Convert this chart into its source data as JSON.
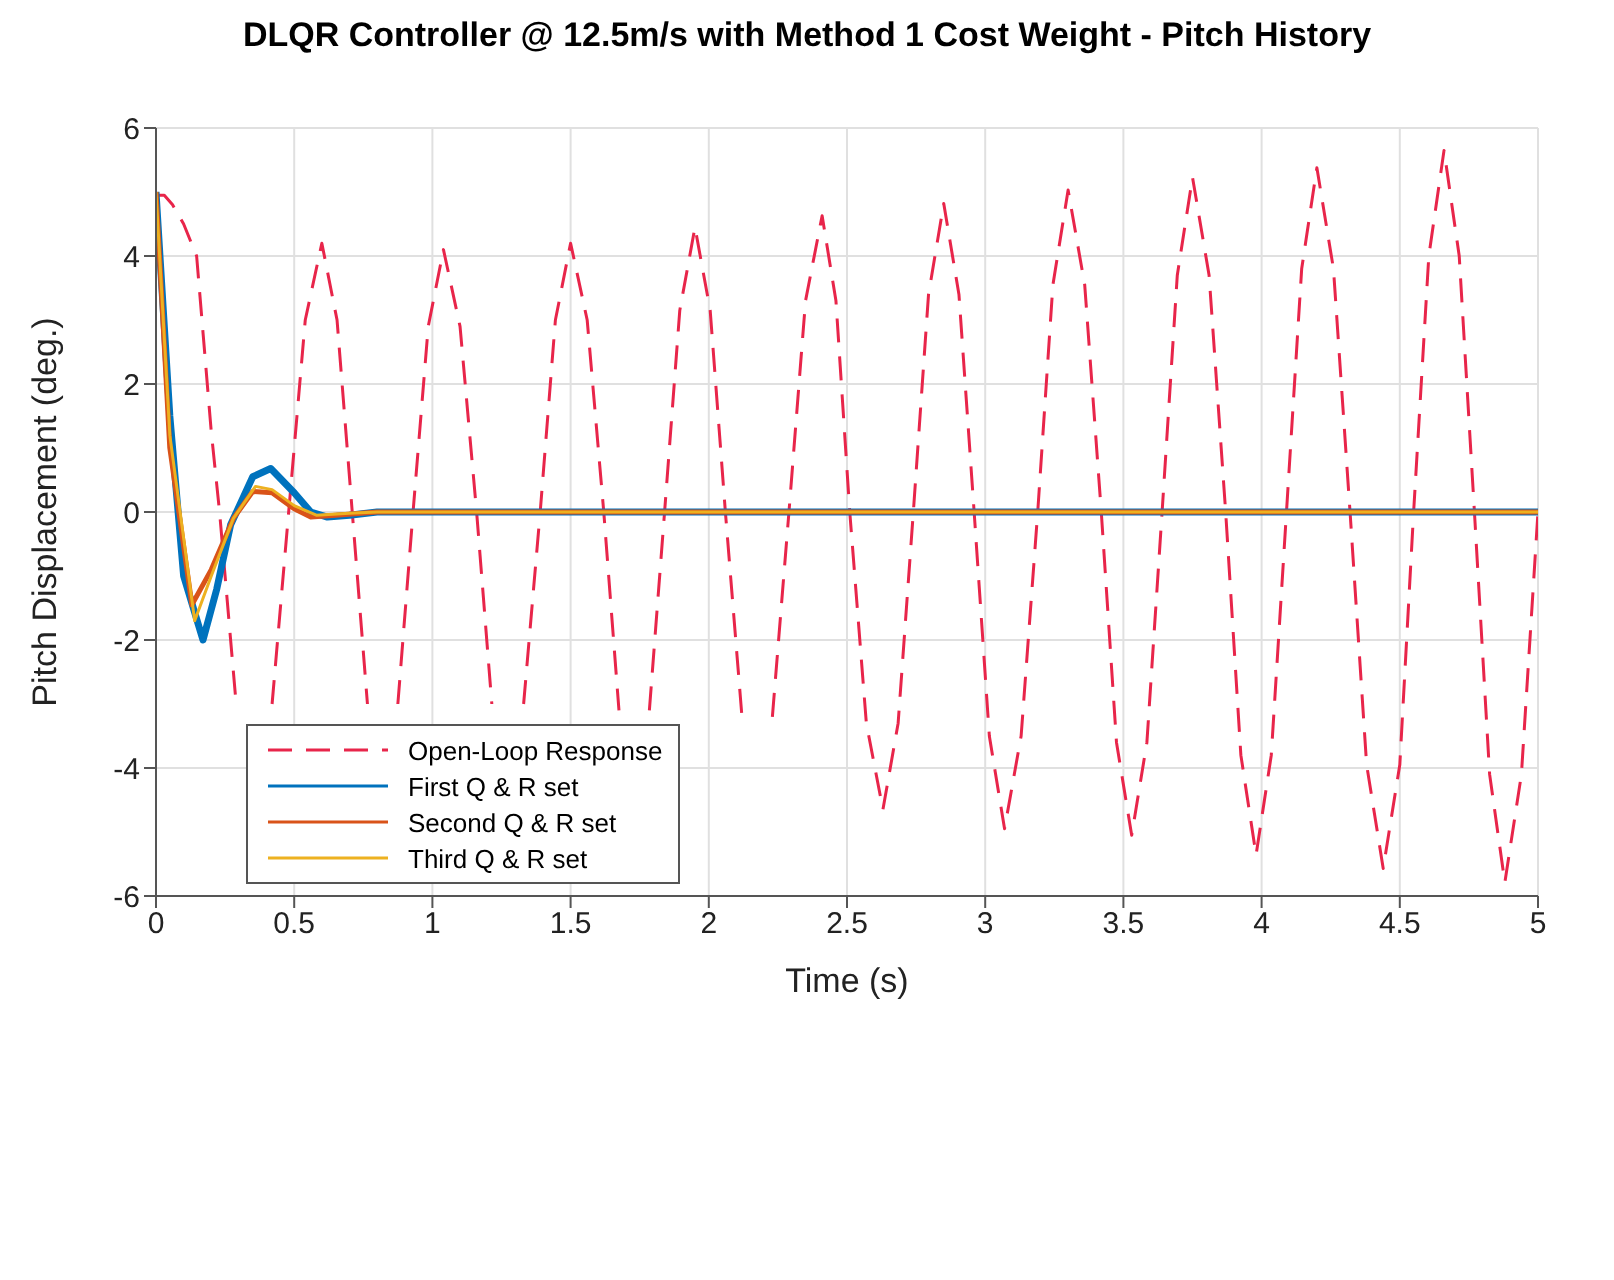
{
  "chart_data": {
    "type": "line",
    "title": "DLQR Controller @ 12.5m/s with Method 1 Cost Weight - Pitch History",
    "xlabel": "Time (s)",
    "ylabel": "Pitch Displacement (deg.)",
    "xlim": [
      0,
      5
    ],
    "xticks": [
      0,
      0.5,
      1,
      1.5,
      2,
      2.5,
      3,
      3.5,
      4,
      4.5,
      5
    ],
    "ylim": [
      -6,
      6
    ],
    "yticks": [
      -6,
      -4,
      -2,
      0,
      2,
      4,
      6
    ],
    "grid": true,
    "legend": "bottom left",
    "marker": "none",
    "series": [
      {
        "name": "Open-Loop Response",
        "color": "#e8254a",
        "line_style": "dashed",
        "x": [
          0,
          0.03,
          0.06,
          0.1,
          0.147,
          0.2,
          0.23,
          0.29,
          0.355,
          0.42,
          0.48,
          0.54,
          0.6,
          0.655,
          0.71,
          0.765,
          0.82,
          0.875,
          0.93,
          0.985,
          1.04,
          1.1,
          1.16,
          1.215,
          1.27,
          1.33,
          1.39,
          1.445,
          1.5,
          1.56,
          1.62,
          1.675,
          1.73,
          1.785,
          1.84,
          1.895,
          1.95,
          2.005,
          2.06,
          2.12,
          2.175,
          2.23,
          2.29,
          2.35,
          2.41,
          2.46,
          2.51,
          2.57,
          2.63,
          2.685,
          2.74,
          2.795,
          2.85,
          2.905,
          2.96,
          3.015,
          3.07,
          3.13,
          3.19,
          3.245,
          3.3,
          3.36,
          3.42,
          3.475,
          3.53,
          3.585,
          3.64,
          3.695,
          3.75,
          3.81,
          3.87,
          3.925,
          3.98,
          4.035,
          4.09,
          4.145,
          4.2,
          4.26,
          4.32,
          4.38,
          4.44,
          4.5,
          4.55,
          4.605,
          4.66,
          4.715,
          4.77,
          4.825,
          4.88,
          4.94,
          5
        ],
        "values": [
          4.95,
          4.95,
          4.8,
          4.5,
          4.0,
          1.25,
          0,
          -3.0,
          null,
          -3.0,
          0,
          3.0,
          4.2,
          3.0,
          0,
          -3.0,
          null,
          -3.0,
          0,
          2.9,
          4.1,
          2.9,
          0,
          -3.0,
          null,
          -3.0,
          0,
          3.0,
          4.2,
          3.0,
          0,
          -3.1,
          null,
          -3.1,
          0,
          3.15,
          4.45,
          3.15,
          0,
          -3.2,
          null,
          -3.2,
          0,
          3.3,
          4.63,
          3.3,
          0,
          -3.3,
          -4.65,
          -3.3,
          0,
          3.4,
          4.82,
          3.4,
          0,
          -3.5,
          -4.95,
          -3.5,
          0,
          3.55,
          5.03,
          3.55,
          0,
          -3.6,
          -5.05,
          -3.6,
          0,
          3.7,
          5.23,
          3.7,
          0,
          -3.8,
          -5.36,
          -3.8,
          0,
          3.8,
          5.38,
          3.8,
          0,
          -3.95,
          -5.57,
          -3.95,
          0,
          4.0,
          5.65,
          4.0,
          0,
          -4.1,
          -5.79,
          -4.1,
          0
        ]
      },
      {
        "name": "First Q & R set",
        "color": "#0072bd",
        "line_style": "solid",
        "x": [
          0,
          0.05,
          0.1,
          0.17,
          0.22,
          0.27,
          0.35,
          0.415,
          0.5,
          0.56,
          0.62,
          0.7,
          0.8,
          1,
          5
        ],
        "values": [
          5,
          1.5,
          -1.0,
          -2.0,
          -1.2,
          -0.2,
          0.55,
          0.68,
          0.3,
          0,
          -0.08,
          -0.05,
          0,
          0,
          0
        ]
      },
      {
        "name": "Second Q & R set",
        "color": "#d95319",
        "line_style": "solid",
        "x": [
          0,
          0.05,
          0.13,
          0.2,
          0.28,
          0.35,
          0.42,
          0.5,
          0.56,
          0.65,
          0.8,
          5
        ],
        "values": [
          5,
          1.0,
          -1.45,
          -0.9,
          -0.1,
          0.32,
          0.3,
          0.05,
          -0.08,
          -0.05,
          0,
          0
        ]
      },
      {
        "name": "Third Q & R set",
        "color": "#edb120",
        "line_style": "solid",
        "x": [
          0,
          0.05,
          0.14,
          0.2,
          0.28,
          0.36,
          0.42,
          0.5,
          0.58,
          0.7,
          0.8,
          5
        ],
        "values": [
          5,
          1.2,
          -1.7,
          -1.0,
          -0.1,
          0.4,
          0.35,
          0.1,
          -0.05,
          -0.02,
          0,
          0
        ]
      }
    ]
  }
}
